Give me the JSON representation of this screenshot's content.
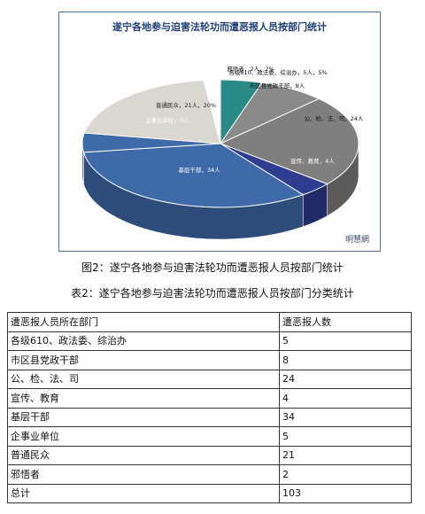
{
  "chart_data": {
    "type": "pie",
    "title": "遂宁各地参与迫害法轮功而遭恶报人员按部门统计",
    "slices": [
      {
        "label": "各级610、政法委、综治办，5人，5%",
        "value": 5,
        "color": "#2a8a86"
      },
      {
        "label": "市区县党政干部，8人",
        "value": 8,
        "color": "#8a8a8a"
      },
      {
        "label": "公、检、法、司，24人",
        "value": 24,
        "color": "#7f7f7f"
      },
      {
        "label": "宣传、教育，4人",
        "value": 4,
        "color": "#2e3d8f"
      },
      {
        "label": "基层干部，34人",
        "value": 34,
        "color": "#3e6aaa"
      },
      {
        "label": "企事业单位，5人",
        "value": 5,
        "color": "#3e6aaa"
      },
      {
        "label": "普通民众，21人，20%",
        "value": 21,
        "color": "#d9d7cf"
      },
      {
        "label": "邪悟者，2人，2%",
        "value": 2,
        "color": "#ffffff"
      }
    ],
    "watermark": "明慧網"
  },
  "captions": {
    "figure": "图2：遂宁各地参与迫害法轮功而遭恶报人员按部门统计",
    "table": "表2：遂宁各地参与迫害法轮功而遭恶报人员按部门分类统计"
  },
  "table": {
    "header": [
      "遭恶报人员所在部门",
      "遭恶报人数"
    ],
    "rows": [
      [
        "各级610、政法委、综治办",
        "5"
      ],
      [
        "市区县党政干部",
        "8"
      ],
      [
        "公、检、法、司",
        "24"
      ],
      [
        "宣传、教育",
        "4"
      ],
      [
        "基层干部",
        "34"
      ],
      [
        "企事业单位",
        "5"
      ],
      [
        "普通民众",
        "21"
      ],
      [
        "邪悟者",
        "2"
      ],
      [
        "总计",
        "103"
      ]
    ]
  }
}
